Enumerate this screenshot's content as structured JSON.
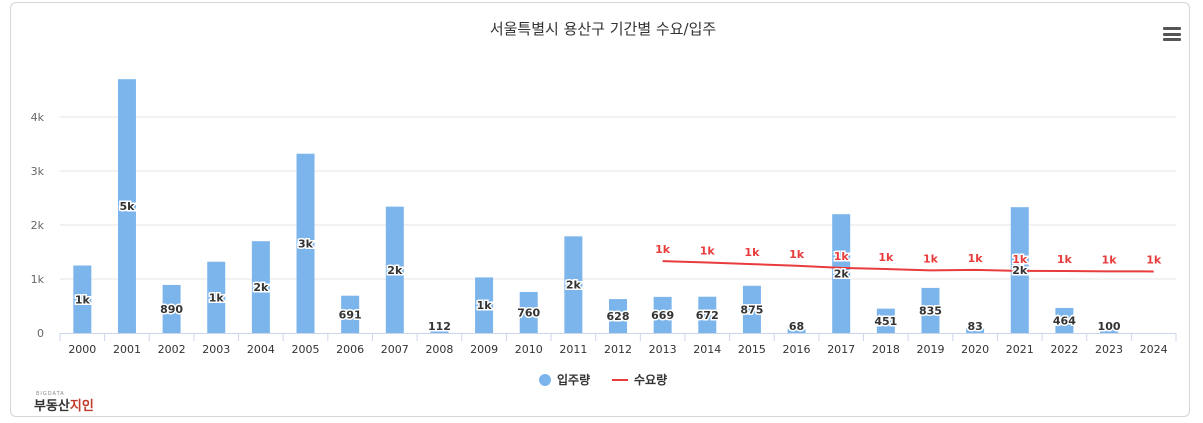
{
  "chart_data": {
    "type": "bar",
    "title": "서울특별시 용산구 기간별 수요/입주",
    "categories": [
      "2000",
      "2001",
      "2002",
      "2003",
      "2004",
      "2005",
      "2006",
      "2007",
      "2008",
      "2009",
      "2010",
      "2011",
      "2012",
      "2013",
      "2014",
      "2015",
      "2016",
      "2017",
      "2018",
      "2019",
      "2020",
      "2021",
      "2022",
      "2023",
      "2024"
    ],
    "ylim": [
      0,
      4000
    ],
    "yticks": [
      {
        "value": 0,
        "label": "0"
      },
      {
        "value": 1000,
        "label": "1k"
      },
      {
        "value": 2000,
        "label": "2k"
      },
      {
        "value": 3000,
        "label": "3k"
      },
      {
        "value": 4000,
        "label": "4k"
      }
    ],
    "grid": true,
    "legend_position": "bottom",
    "series": [
      {
        "name": "입주량",
        "type": "bar",
        "color": "#7cb5ec",
        "values": [
          1250,
          4700,
          890,
          1320,
          1700,
          3320,
          691,
          2340,
          112,
          1030,
          760,
          1790,
          628,
          669,
          672,
          875,
          68,
          2200,
          451,
          835,
          83,
          2330,
          464,
          100,
          null
        ],
        "data_labels": [
          "1k",
          "5k",
          "890",
          "1k",
          "2k",
          "3k",
          "691",
          "2k",
          "112",
          "1k",
          "760",
          "2k",
          "628",
          "669",
          "672",
          "875",
          "68",
          "2k",
          "451",
          "835",
          "83",
          "2k",
          "464",
          "100",
          ""
        ]
      },
      {
        "name": "수요량",
        "type": "line",
        "color": "#e83c3c",
        "values": [
          null,
          null,
          null,
          null,
          null,
          null,
          null,
          null,
          null,
          null,
          null,
          null,
          null,
          1330,
          1305,
          1275,
          1245,
          1205,
          1185,
          1160,
          1170,
          1150,
          1148,
          1142,
          1140
        ],
        "data_labels": [
          "",
          "",
          "",
          "",
          "",
          "",
          "",
          "",
          "",
          "",
          "",
          "",
          "",
          "1k",
          "1k",
          "1k",
          "1k",
          "1k",
          "1k",
          "1k",
          "1k",
          "1k",
          "1k",
          "1k",
          "1k"
        ]
      }
    ]
  },
  "logo": {
    "small": "BIGDATA",
    "main_prefix": "부동산",
    "main_accent": "지인"
  }
}
